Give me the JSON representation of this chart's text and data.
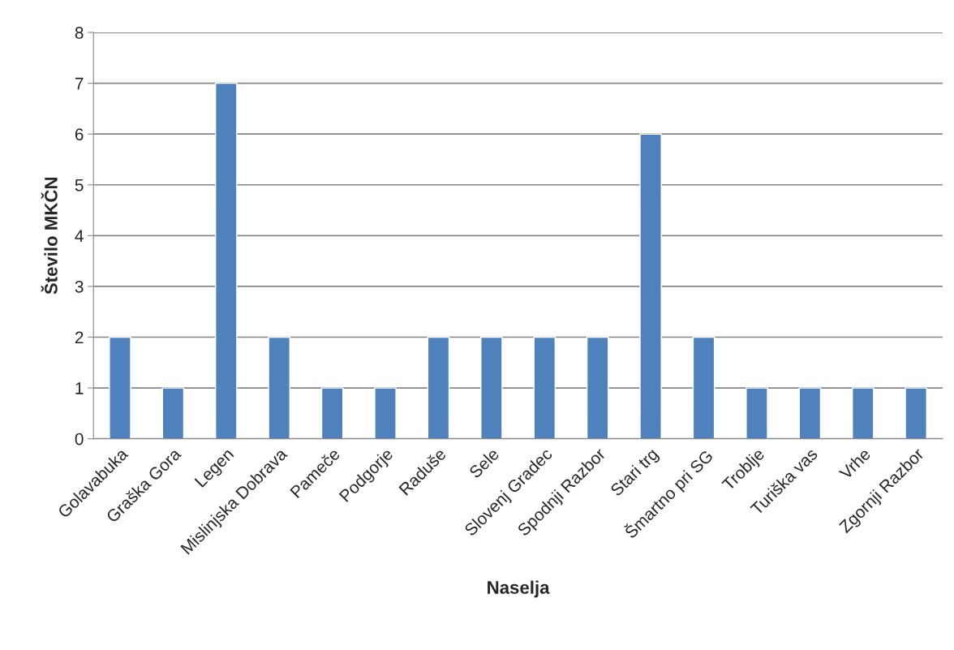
{
  "chart_data": {
    "type": "bar",
    "xlabel": "Naselja",
    "ylabel": "Število MKČN",
    "categories": [
      "Golavabuka",
      "Graška Gora",
      "Legen",
      "Mislinjska Dobrava",
      "Pameče",
      "Podgorje",
      "Raduše",
      "Sele",
      "Slovenj Gradec",
      "Spodnji Razbor",
      "Stari trg",
      "Šmartno pri SG",
      "Troblje",
      "Turiška vas",
      "Vrhe",
      "Zgornji Razbor"
    ],
    "values": [
      2,
      1,
      7,
      2,
      1,
      1,
      2,
      2,
      2,
      2,
      6,
      2,
      1,
      1,
      1,
      1
    ],
    "color": "#4f81bd",
    "ylim": [
      0,
      8
    ],
    "yticks": [
      0,
      1,
      2,
      3,
      4,
      5,
      6,
      7,
      8
    ],
    "grid": "y",
    "legend": false
  }
}
